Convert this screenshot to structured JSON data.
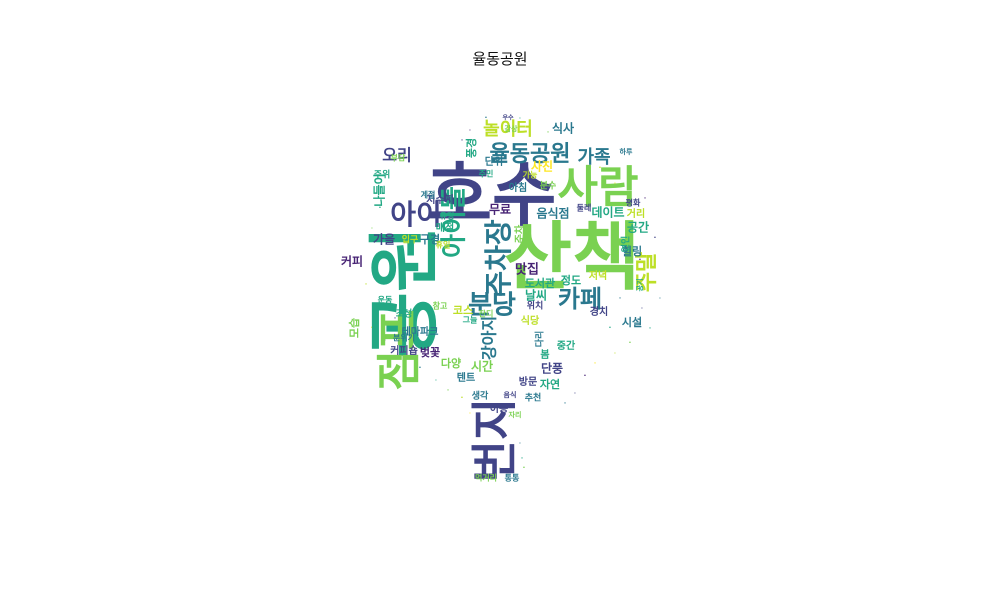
{
  "title": "율동공원",
  "palette": [
    "#482475",
    "#414487",
    "#2a788e",
    "#22a884",
    "#7ad151",
    "#bddf26",
    "#fde725"
  ],
  "words": [
    {
      "text": "호수",
      "weight": 100
    },
    {
      "text": "산책",
      "weight": 98
    },
    {
      "text": "공원",
      "weight": 94
    },
    {
      "text": "번지",
      "weight": 78
    },
    {
      "text": "사람",
      "weight": 72
    },
    {
      "text": "점프",
      "weight": 68
    },
    {
      "text": "아이",
      "weight": 48
    },
    {
      "text": "분당",
      "weight": 50
    },
    {
      "text": "율동공원",
      "weight": 46
    },
    {
      "text": "카페",
      "weight": 44
    },
    {
      "text": "주말",
      "weight": 40
    },
    {
      "text": "아이들",
      "weight": 36
    },
    {
      "text": "놀이터",
      "weight": 30
    },
    {
      "text": "주차장",
      "weight": 36
    },
    {
      "text": "가족",
      "weight": 30
    },
    {
      "text": "오리",
      "weight": 26
    },
    {
      "text": "맛집",
      "weight": 24
    },
    {
      "text": "강아지",
      "weight": 24
    },
    {
      "text": "데이트",
      "weight": 20
    },
    {
      "text": "사진",
      "weight": 20
    },
    {
      "text": "식사",
      "weight": 20
    },
    {
      "text": "공간",
      "weight": 20
    },
    {
      "text": "날씨",
      "weight": 18
    },
    {
      "text": "정도",
      "weight": 18
    },
    {
      "text": "힐링",
      "weight": 18
    },
    {
      "text": "벚꽃",
      "weight": 18
    },
    {
      "text": "시간",
      "weight": 18
    },
    {
      "text": "코스",
      "weight": 16
    },
    {
      "text": "가을",
      "weight": 16
    },
    {
      "text": "커피",
      "weight": 16
    },
    {
      "text": "나들이",
      "weight": 16
    },
    {
      "text": "무료",
      "weight": 16
    },
    {
      "text": "음식점",
      "weight": 16
    },
    {
      "text": "단풍",
      "weight": 16
    },
    {
      "text": "자연",
      "weight": 16
    },
    {
      "text": "도서관",
      "weight": 14
    },
    {
      "text": "저녁",
      "weight": 14
    },
    {
      "text": "경치",
      "weight": 14
    },
    {
      "text": "시설",
      "weight": 14
    },
    {
      "text": "식당",
      "weight": 14
    },
    {
      "text": "다양",
      "weight": 14
    },
    {
      "text": "텐트",
      "weight": 13
    },
    {
      "text": "테마파크",
      "weight": 13
    },
    {
      "text": "커피숍",
      "weight": 13
    },
    {
      "text": "구경",
      "weight": 14
    },
    {
      "text": "방문",
      "weight": 13
    },
    {
      "text": "이용",
      "weight": 13
    },
    {
      "text": "중간",
      "weight": 12
    },
    {
      "text": "위치",
      "weight": 12
    },
    {
      "text": "입구",
      "weight": 12
    },
    {
      "text": "모습",
      "weight": 13
    },
    {
      "text": "풍경",
      "weight": 12
    },
    {
      "text": "아침",
      "weight": 12
    },
    {
      "text": "단위",
      "weight": 12
    },
    {
      "text": "저수지",
      "weight": 12
    },
    {
      "text": "매점",
      "weight": 12
    },
    {
      "text": "주차",
      "weight": 12
    },
    {
      "text": "분수",
      "weight": 11
    },
    {
      "text": "거리",
      "weight": 12
    },
    {
      "text": "연인",
      "weight": 11
    },
    {
      "text": "평화",
      "weight": 10
    },
    {
      "text": "주위",
      "weight": 10
    },
    {
      "text": "부담",
      "weight": 10
    },
    {
      "text": "조성",
      "weight": 10
    },
    {
      "text": "주민",
      "weight": 10
    },
    {
      "text": "다리",
      "weight": 10
    },
    {
      "text": "추천",
      "weight": 10
    },
    {
      "text": "먹거리",
      "weight": 10
    },
    {
      "text": "생각",
      "weight": 10
    },
    {
      "text": "분위기",
      "weight": 10
    },
    {
      "text": "둘레",
      "weight": 10
    },
    {
      "text": "휴일",
      "weight": 10
    },
    {
      "text": "잔디",
      "weight": 10
    },
    {
      "text": "봄",
      "weight": 10
    },
    {
      "text": "유명",
      "weight": 9
    },
    {
      "text": "계절",
      "weight": 9
    },
    {
      "text": "통통",
      "weight": 9
    },
    {
      "text": "참고",
      "weight": 9
    },
    {
      "text": "그늘",
      "weight": 9
    },
    {
      "text": "가능",
      "weight": 9
    },
    {
      "text": "운동",
      "weight": 9
    },
    {
      "text": "공기",
      "weight": 8
    },
    {
      "text": "하루",
      "weight": 8
    },
    {
      "text": "자리",
      "weight": 8
    },
    {
      "text": "음식",
      "weight": 8
    },
    {
      "text": "우수",
      "weight": 8
    },
    {
      "text": "감상",
      "weight": 8
    }
  ]
}
